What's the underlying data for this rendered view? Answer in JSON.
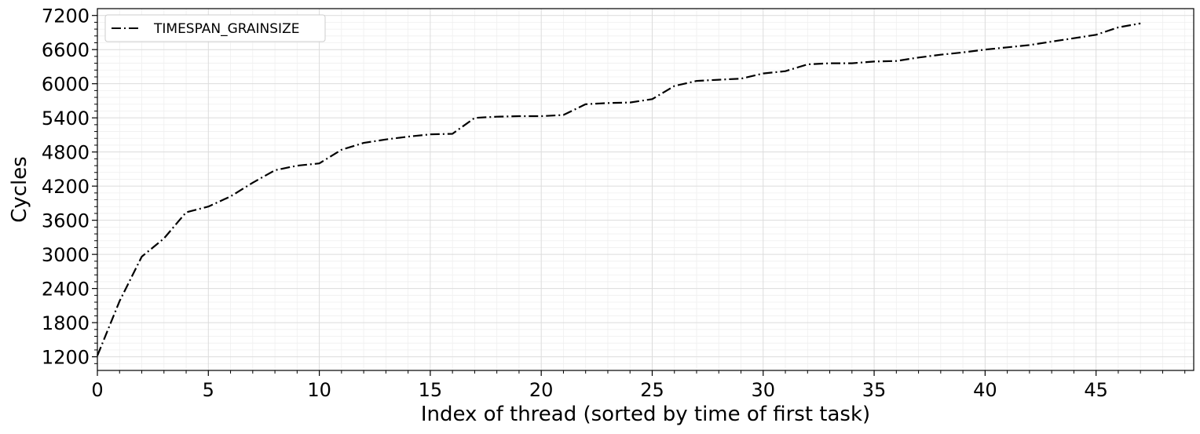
{
  "chart_data": {
    "type": "line",
    "xlabel": "Index of thread (sorted by time of first task)",
    "ylabel": "Cycles",
    "xlim": [
      0,
      49.4
    ],
    "ylim": [
      960,
      7320
    ],
    "xticks": [
      0,
      5,
      10,
      15,
      20,
      25,
      30,
      35,
      40,
      45
    ],
    "yticks": [
      1200,
      1800,
      2400,
      3000,
      3600,
      4200,
      4800,
      5400,
      6000,
      6600,
      7200
    ],
    "grid": true,
    "legend_position": "top-left",
    "series": [
      {
        "name": "TIMESPAN_GRAINSIZE",
        "color": "#000000",
        "line_style": "dash-dot",
        "x": [
          0,
          1,
          2,
          3,
          4,
          5,
          6,
          7,
          8,
          9,
          10,
          11,
          12,
          13,
          14,
          15,
          16,
          17,
          18,
          19,
          20,
          21,
          22,
          23,
          24,
          25,
          26,
          27,
          28,
          29,
          30,
          31,
          32,
          33,
          34,
          35,
          36,
          37,
          38,
          39,
          40,
          41,
          42,
          43,
          44,
          45,
          46,
          47
        ],
        "values": [
          1220,
          2180,
          2960,
          3280,
          3740,
          3840,
          4020,
          4260,
          4480,
          4560,
          4600,
          4840,
          4960,
          5020,
          5070,
          5110,
          5120,
          5400,
          5420,
          5430,
          5430,
          5450,
          5640,
          5660,
          5670,
          5730,
          5960,
          6050,
          6070,
          6090,
          6180,
          6220,
          6340,
          6360,
          6360,
          6390,
          6400,
          6460,
          6510,
          6550,
          6600,
          6640,
          6680,
          6740,
          6800,
          6860,
          6990,
          7060
        ]
      }
    ]
  }
}
